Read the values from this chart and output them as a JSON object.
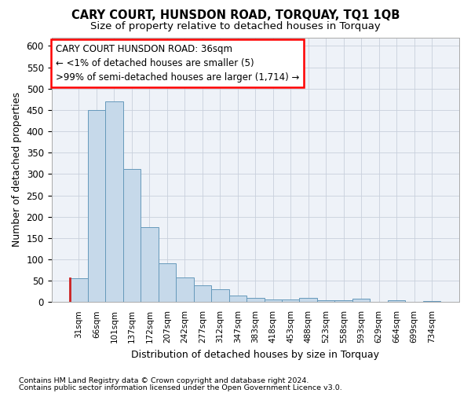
{
  "title": "CARY COURT, HUNSDON ROAD, TORQUAY, TQ1 1QB",
  "subtitle": "Size of property relative to detached houses in Torquay",
  "xlabel": "Distribution of detached houses by size in Torquay",
  "ylabel": "Number of detached properties",
  "bar_color": "#c6d9ea",
  "bar_edge_color": "#6699bb",
  "highlight_edge_color": "#cc2222",
  "categories": [
    "31sqm",
    "66sqm",
    "101sqm",
    "137sqm",
    "172sqm",
    "207sqm",
    "242sqm",
    "277sqm",
    "312sqm",
    "347sqm",
    "383sqm",
    "418sqm",
    "453sqm",
    "488sqm",
    "523sqm",
    "558sqm",
    "593sqm",
    "629sqm",
    "664sqm",
    "699sqm",
    "734sqm"
  ],
  "values": [
    55,
    450,
    470,
    312,
    175,
    90,
    57,
    40,
    30,
    16,
    10,
    7,
    6,
    10,
    5,
    5,
    8,
    0,
    5,
    0,
    3
  ],
  "highlight_index": 0,
  "ylim": [
    0,
    620
  ],
  "yticks": [
    0,
    50,
    100,
    150,
    200,
    250,
    300,
    350,
    400,
    450,
    500,
    550,
    600
  ],
  "annotation_lines": [
    "CARY COURT HUNSDON ROAD: 36sqm",
    "← <1% of detached houses are smaller (5)",
    ">99% of semi-detached houses are larger (1,714) →"
  ],
  "background_color": "#eef2f8",
  "grid_color": "#c8d0dc",
  "footnote1": "Contains HM Land Registry data © Crown copyright and database right 2024.",
  "footnote2": "Contains public sector information licensed under the Open Government Licence v3.0."
}
